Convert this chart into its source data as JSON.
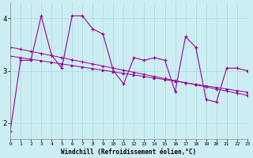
{
  "xlabel": "Windchill (Refroidissement éolien,°C)",
  "background_color": "#cceef2",
  "grid_color": "#aadde2",
  "line_color": "#990099",
  "x_data": [
    0,
    1,
    2,
    3,
    4,
    5,
    6,
    7,
    8,
    9,
    10,
    11,
    12,
    13,
    14,
    15,
    16,
    17,
    18,
    19,
    20,
    21,
    22,
    23
  ],
  "y_main": [
    1.85,
    3.2,
    3.2,
    4.05,
    3.3,
    3.05,
    4.05,
    4.05,
    3.8,
    3.7,
    3.0,
    2.75,
    3.25,
    3.2,
    3.25,
    3.2,
    2.6,
    3.65,
    3.45,
    2.45,
    2.4,
    3.05,
    3.05,
    3.0
  ],
  "y_trend_upper": [
    3.45,
    3.41,
    3.37,
    3.33,
    3.29,
    3.25,
    3.21,
    3.17,
    3.13,
    3.09,
    3.05,
    3.01,
    2.97,
    2.93,
    2.89,
    2.85,
    2.81,
    2.77,
    2.73,
    2.69,
    2.65,
    2.61,
    2.57,
    2.53
  ],
  "y_trend_lower": [
    3.28,
    3.25,
    3.22,
    3.19,
    3.16,
    3.13,
    3.1,
    3.07,
    3.04,
    3.01,
    2.98,
    2.95,
    2.92,
    2.89,
    2.86,
    2.83,
    2.8,
    2.77,
    2.74,
    2.71,
    2.68,
    2.65,
    2.62,
    2.59
  ],
  "xlim": [
    0,
    23
  ],
  "ylim": [
    1.7,
    4.3
  ],
  "yticks": [
    2,
    3,
    4
  ],
  "xticks": [
    0,
    1,
    2,
    3,
    4,
    5,
    6,
    7,
    8,
    9,
    10,
    11,
    12,
    13,
    14,
    15,
    16,
    17,
    18,
    19,
    20,
    21,
    22,
    23
  ]
}
